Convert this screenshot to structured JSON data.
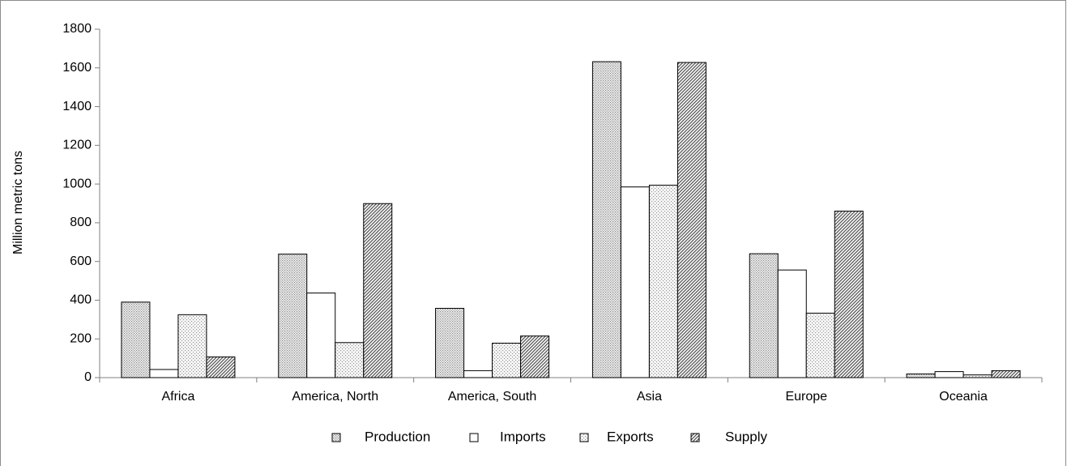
{
  "chart_data": {
    "type": "bar",
    "title": "",
    "xlabel": "",
    "ylabel": "Million metric tons",
    "ylim": [
      0,
      1800
    ],
    "yticks": [
      0,
      200,
      400,
      600,
      800,
      1000,
      1200,
      1400,
      1600,
      1800
    ],
    "grid": false,
    "legend_position": "bottom",
    "categories": [
      "Africa",
      "America, North",
      "America, South",
      "Asia",
      "Europe",
      "Oceania"
    ],
    "series": [
      {
        "name": "Production",
        "pattern": "dots-dense",
        "color": "#b8b8b8",
        "values": [
          390,
          638,
          358,
          1632,
          640,
          19
        ]
      },
      {
        "name": "Imports",
        "pattern": "solid-white",
        "color": "#ffffff",
        "values": [
          42,
          437,
          36,
          985,
          556,
          31
        ]
      },
      {
        "name": "Exports",
        "pattern": "dots-sparse",
        "color": "#bdbdbd",
        "values": [
          325,
          181,
          178,
          994,
          333,
          14
        ]
      },
      {
        "name": "Supply",
        "pattern": "diagonal-hatch",
        "color": "#4d4d4d",
        "values": [
          107,
          899,
          215,
          1628,
          860,
          36
        ]
      }
    ]
  }
}
